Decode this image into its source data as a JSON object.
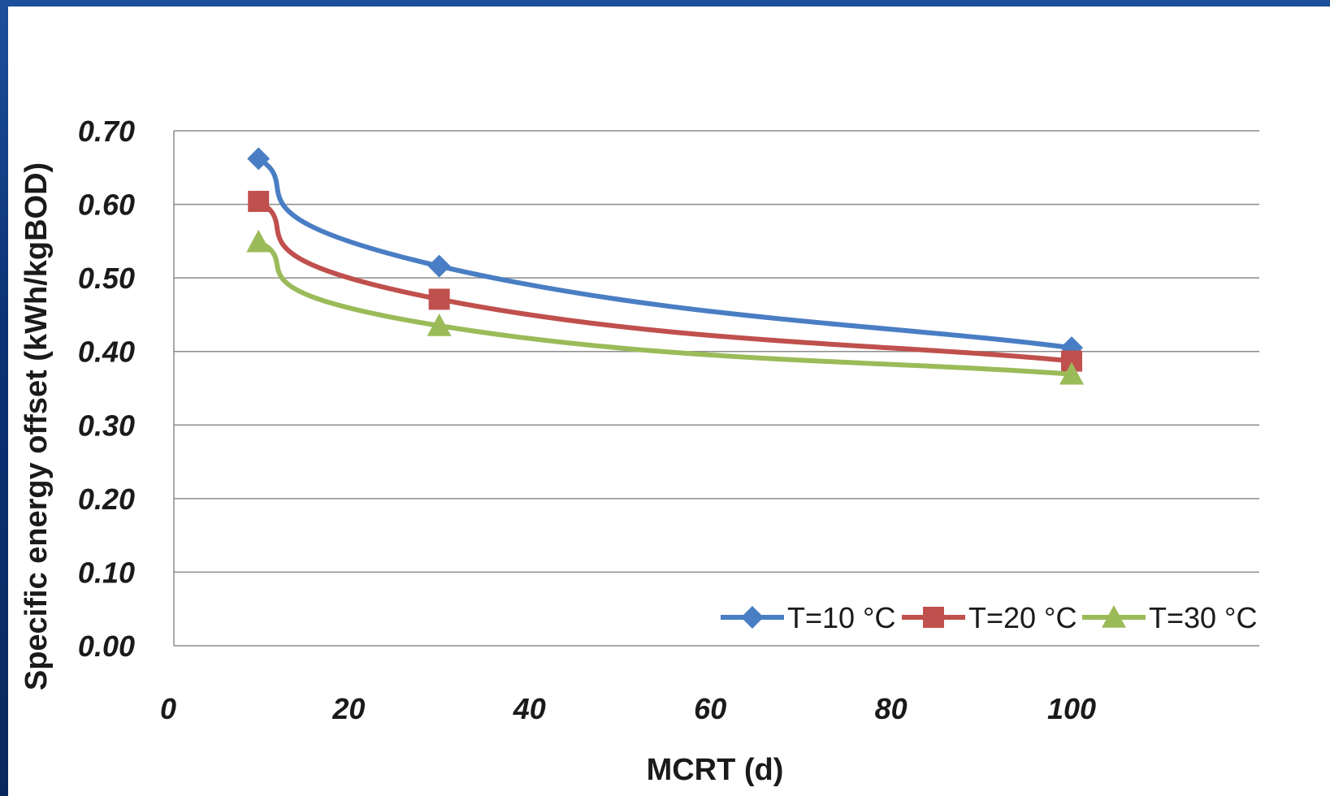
{
  "chart_data": {
    "type": "line",
    "xlabel": "MCRT (d)",
    "ylabel": "Specific energy offset  (kWh/kgBOD)",
    "xlim": [
      0,
      120
    ],
    "ylim": [
      0,
      0.7
    ],
    "x_ticks": [
      "0",
      "20",
      "40",
      "60",
      "80",
      "100"
    ],
    "y_ticks": [
      "0.00",
      "0.10",
      "0.20",
      "0.30",
      "0.40",
      "0.50",
      "0.60",
      "0.70"
    ],
    "grid": "horizontal",
    "legend_position": "bottom-right",
    "x": [
      10,
      30,
      100
    ],
    "series": [
      {
        "name": "T=10 °C",
        "values": [
          0.662,
          0.516,
          0.405
        ],
        "color": "#4a7ec4",
        "marker": "diamond"
      },
      {
        "name": "T=20 °C",
        "values": [
          0.604,
          0.471,
          0.387
        ],
        "color": "#c0504d",
        "marker": "square"
      },
      {
        "name": "T=30 °C",
        "values": [
          0.549,
          0.435,
          0.369
        ],
        "color": "#9bbb59",
        "marker": "triangle"
      }
    ]
  }
}
